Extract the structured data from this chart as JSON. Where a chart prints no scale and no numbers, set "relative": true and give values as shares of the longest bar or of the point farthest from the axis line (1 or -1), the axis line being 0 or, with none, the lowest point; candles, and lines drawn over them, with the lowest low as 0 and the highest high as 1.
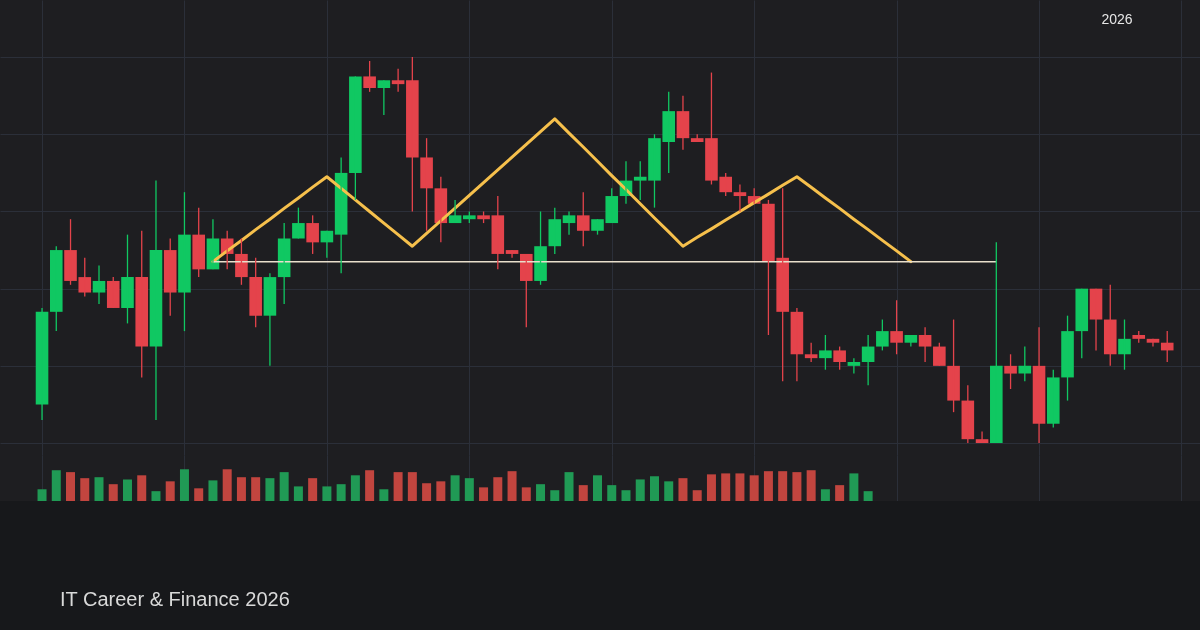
{
  "chart_data": [
    {
      "type": "candlestick",
      "relative": true,
      "grid": true,
      "annotations": [
        "2026"
      ],
      "categories": [
        null,
        null,
        null,
        null,
        null,
        null,
        null,
        null,
        null,
        null,
        null,
        null,
        null,
        null,
        null,
        null,
        null,
        null,
        null,
        null,
        null,
        null,
        null,
        null,
        null,
        null,
        null,
        null,
        null,
        null,
        null,
        null,
        null,
        null,
        null,
        null,
        null,
        null,
        null,
        null,
        null,
        null,
        null,
        null,
        null,
        null,
        null,
        null,
        null,
        null,
        null,
        null,
        null,
        null,
        null,
        null,
        null,
        null,
        null,
        null,
        null,
        null,
        null,
        null,
        null,
        null,
        null,
        null,
        null,
        null,
        null,
        null,
        null,
        null,
        null,
        null,
        null,
        null,
        null,
        null
      ],
      "ohlc": [
        [
          0.1,
          0.35,
          0.06,
          0.34
        ],
        [
          0.34,
          0.51,
          0.29,
          0.5
        ],
        [
          0.5,
          0.58,
          0.41,
          0.42
        ],
        [
          0.43,
          0.48,
          0.38,
          0.39
        ],
        [
          0.39,
          0.46,
          0.36,
          0.42
        ],
        [
          0.42,
          0.43,
          0.35,
          0.35
        ],
        [
          0.35,
          0.54,
          0.31,
          0.43
        ],
        [
          0.43,
          0.55,
          0.17,
          0.25
        ],
        [
          0.25,
          0.68,
          0.06,
          0.5
        ],
        [
          0.5,
          0.53,
          0.33,
          0.39
        ],
        [
          0.39,
          0.65,
          0.29,
          0.54
        ],
        [
          0.54,
          0.61,
          0.43,
          0.45
        ],
        [
          0.45,
          0.58,
          0.45,
          0.53
        ],
        [
          0.53,
          0.55,
          0.45,
          0.49
        ],
        [
          0.49,
          0.53,
          0.41,
          0.43
        ],
        [
          0.43,
          0.48,
          0.3,
          0.33
        ],
        [
          0.33,
          0.44,
          0.2,
          0.43
        ],
        [
          0.43,
          0.57,
          0.36,
          0.53
        ],
        [
          0.53,
          0.61,
          0.53,
          0.57
        ],
        [
          0.57,
          0.59,
          0.49,
          0.52
        ],
        [
          0.52,
          0.55,
          0.48,
          0.55
        ],
        [
          0.54,
          0.74,
          0.44,
          0.7
        ],
        [
          0.7,
          0.95,
          0.63,
          0.95
        ],
        [
          0.95,
          0.99,
          0.91,
          0.92
        ],
        [
          0.92,
          0.94,
          0.85,
          0.94
        ],
        [
          0.94,
          0.97,
          0.91,
          0.93
        ],
        [
          0.94,
          1.0,
          0.6,
          0.74
        ],
        [
          0.74,
          0.79,
          0.55,
          0.66
        ],
        [
          0.66,
          0.69,
          0.52,
          0.57
        ],
        [
          0.57,
          0.63,
          0.57,
          0.59
        ],
        [
          0.58,
          0.6,
          0.57,
          0.59
        ],
        [
          0.59,
          0.6,
          0.57,
          0.58
        ],
        [
          0.59,
          0.64,
          0.45,
          0.49
        ],
        [
          0.5,
          0.5,
          0.48,
          0.49
        ],
        [
          0.49,
          0.49,
          0.3,
          0.42
        ],
        [
          0.42,
          0.6,
          0.41,
          0.51
        ],
        [
          0.51,
          0.61,
          0.49,
          0.58
        ],
        [
          0.57,
          0.6,
          0.54,
          0.59
        ],
        [
          0.59,
          0.65,
          0.51,
          0.55
        ],
        [
          0.55,
          0.58,
          0.54,
          0.58
        ],
        [
          0.57,
          0.66,
          0.57,
          0.64
        ],
        [
          0.64,
          0.73,
          0.62,
          0.68
        ],
        [
          0.68,
          0.73,
          0.63,
          0.69
        ],
        [
          0.68,
          0.8,
          0.61,
          0.79
        ],
        [
          0.78,
          0.91,
          0.7,
          0.86
        ],
        [
          0.86,
          0.9,
          0.76,
          0.79
        ],
        [
          0.79,
          0.8,
          0.78,
          0.78
        ],
        [
          0.79,
          0.96,
          0.67,
          0.68
        ],
        [
          0.69,
          0.7,
          0.64,
          0.65
        ],
        [
          0.65,
          0.67,
          0.6,
          0.64
        ],
        [
          0.64,
          0.66,
          0.62,
          0.62
        ],
        [
          0.62,
          0.63,
          0.28,
          0.47
        ],
        [
          0.48,
          0.66,
          0.16,
          0.34
        ],
        [
          0.34,
          0.35,
          0.16,
          0.23
        ],
        [
          0.23,
          0.26,
          0.21,
          0.22
        ],
        [
          0.22,
          0.28,
          0.19,
          0.24
        ],
        [
          0.24,
          0.25,
          0.19,
          0.21
        ],
        [
          0.2,
          0.22,
          0.18,
          0.21
        ],
        [
          0.21,
          0.28,
          0.15,
          0.25
        ],
        [
          0.25,
          0.32,
          0.24,
          0.29
        ],
        [
          0.29,
          0.37,
          0.23,
          0.26
        ],
        [
          0.26,
          0.28,
          0.25,
          0.28
        ],
        [
          0.28,
          0.3,
          0.21,
          0.25
        ],
        [
          0.25,
          0.26,
          0.2,
          0.2
        ],
        [
          0.2,
          0.32,
          0.08,
          0.11
        ],
        [
          0.11,
          0.15,
          0.0,
          0.01
        ],
        [
          0.01,
          0.03,
          0.0,
          0.0
        ],
        [
          0.0,
          0.52,
          0.0,
          0.2
        ],
        [
          0.2,
          0.23,
          0.14,
          0.18
        ],
        [
          0.18,
          0.25,
          0.16,
          0.2
        ],
        [
          0.2,
          0.3,
          0.0,
          0.05
        ],
        [
          0.05,
          0.19,
          0.04,
          0.17
        ],
        [
          0.17,
          0.33,
          0.11,
          0.29
        ],
        [
          0.29,
          0.4,
          0.22,
          0.4
        ],
        [
          0.4,
          0.4,
          0.24,
          0.32
        ],
        [
          0.32,
          0.41,
          0.2,
          0.23
        ],
        [
          0.23,
          0.32,
          0.19,
          0.27
        ],
        [
          0.28,
          0.29,
          0.26,
          0.27
        ],
        [
          0.27,
          0.27,
          0.25,
          0.26
        ],
        [
          0.26,
          0.29,
          0.21,
          0.24
        ]
      ],
      "colors": [
        "#10c862",
        "#10c862",
        "#e4434b",
        "#e4434b",
        "#10c862",
        "#e4434b",
        "#10c862",
        "#e4434b",
        "#10c862",
        "#e4434b",
        "#10c862",
        "#e4434b",
        "#10c862",
        "#e4434b",
        "#e4434b",
        "#e4434b",
        "#10c862",
        "#10c862",
        "#10c862",
        "#e4434b",
        "#10c862",
        "#10c862",
        "#10c862",
        "#e4434b",
        "#10c862",
        "#e4434b",
        "#e4434b",
        "#e4434b",
        "#e4434b",
        "#10c862",
        "#10c862",
        "#e4434b",
        "#e4434b",
        "#e4434b",
        "#e4434b",
        "#10c862",
        "#10c862",
        "#10c862",
        "#e4434b",
        "#10c862",
        "#10c862",
        "#10c862",
        "#10c862",
        "#10c862",
        "#10c862",
        "#e4434b",
        "#e4434b",
        "#e4434b",
        "#e4434b",
        "#e4434b",
        "#e4434b",
        "#e4434b",
        "#e4434b",
        "#e4434b",
        "#e4434b",
        "#10c862",
        "#e4434b",
        "#10c862",
        "#10c862",
        "#10c862",
        "#e4434b",
        "#10c862",
        "#e4434b",
        "#e4434b",
        "#e4434b",
        "#e4434b",
        "#e4434b",
        "#10c862",
        "#e4434b",
        "#10c862",
        "#e4434b",
        "#10c862",
        "#10c862",
        "#10c862",
        "#e4434b",
        "#e4434b",
        "#10c862",
        "#e4434b",
        "#e4434b",
        "#e4434b"
      ],
      "series": [
        {
          "type": "line",
          "color": "#f6c04c",
          "values": [
            null,
            null,
            null,
            null,
            null,
            null,
            null,
            null,
            null,
            null,
            null,
            null,
            0.47,
            0.498,
            0.525,
            0.553,
            0.58,
            0.608,
            0.635,
            0.663,
            0.69,
            0.66,
            0.63,
            0.6,
            0.57,
            0.54,
            0.51,
            0.543,
            0.576,
            0.609,
            0.642,
            0.675,
            0.708,
            0.741,
            0.774,
            0.807,
            0.84,
            0.803,
            0.767,
            0.73,
            0.693,
            0.657,
            0.62,
            0.583,
            0.547,
            0.51,
            0.533,
            0.555,
            0.578,
            0.6,
            0.623,
            0.645,
            0.668,
            0.69,
            0.663,
            0.635,
            0.608,
            0.58,
            0.553,
            0.525,
            0.498,
            0.47,
            null,
            null,
            null,
            null,
            null,
            null,
            null,
            null,
            null,
            null,
            null,
            null,
            null,
            null,
            null,
            null,
            null,
            null
          ]
        },
        {
          "type": "line",
          "color": "#e9dfcc",
          "values": [
            null,
            null,
            null,
            null,
            null,
            null,
            null,
            null,
            null,
            null,
            null,
            null,
            0.47,
            0.47,
            0.47,
            0.47,
            0.47,
            0.47,
            0.47,
            0.47,
            0.47,
            0.47,
            0.47,
            0.47,
            0.47,
            0.47,
            0.47,
            0.47,
            0.47,
            0.47,
            0.47,
            0.47,
            0.47,
            0.47,
            0.47,
            0.47,
            0.47,
            0.47,
            0.47,
            0.47,
            0.47,
            0.47,
            0.47,
            0.47,
            0.47,
            0.47,
            0.47,
            0.47,
            0.47,
            0.47,
            0.47,
            0.47,
            0.47,
            0.47,
            0.47,
            0.47,
            0.47,
            0.47,
            0.47,
            0.47,
            0.47,
            0.47,
            0.47,
            0.47,
            0.47,
            0.47,
            0.47,
            0.47,
            null,
            null,
            null,
            null,
            null,
            null,
            null,
            null,
            null,
            null,
            null,
            null
          ]
        }
      ]
    },
    {
      "type": "bar",
      "relative": true,
      "grid": "x",
      "annotations": [
        "IT Career & Finance 2026"
      ],
      "categories": [
        null,
        null,
        null,
        null,
        null,
        null,
        null,
        null,
        null,
        null,
        null,
        null,
        null,
        null,
        null,
        null,
        null,
        null,
        null,
        null,
        null,
        null,
        null,
        null,
        null,
        null,
        null,
        null,
        null,
        null,
        null,
        null,
        null,
        null,
        null,
        null,
        null,
        null,
        null,
        null,
        null,
        null,
        null,
        null,
        null,
        null,
        null,
        null,
        null,
        null,
        null,
        null,
        null,
        null,
        null,
        null,
        null,
        null,
        null,
        null,
        null,
        null,
        null,
        null,
        null,
        null,
        null,
        null,
        null,
        null,
        null,
        null,
        null,
        null,
        null,
        null,
        null,
        null,
        null,
        null
      ],
      "values": [
        0.37,
        0.97,
        0.91,
        0.72,
        0.75,
        0.53,
        0.68,
        0.81,
        0.31,
        0.62,
        1.0,
        0.4,
        0.65,
        1.0,
        0.75,
        0.75,
        0.72,
        0.91,
        0.46,
        0.72,
        0.46,
        0.53,
        0.81,
        0.97,
        0.37,
        0.91,
        0.91,
        0.56,
        0.62,
        0.81,
        0.72,
        0.43,
        0.75,
        0.94,
        0.43,
        0.53,
        0.34,
        0.91,
        0.5,
        0.81,
        0.5,
        0.34,
        0.68,
        0.78,
        0.62,
        0.72,
        0.34,
        0.84,
        0.87,
        0.87,
        0.81,
        0.94,
        0.94,
        0.91,
        0.97,
        0.37,
        0.5,
        0.87,
        0.31,
        null,
        null,
        null,
        null,
        null,
        null,
        null,
        null,
        null,
        null,
        null,
        null,
        null,
        null,
        null,
        null,
        null,
        null,
        null,
        null,
        null
      ],
      "colors": [
        "#209a55",
        "#209a55",
        "#c2453f",
        "#c2453f",
        "#209a55",
        "#c2453f",
        "#209a55",
        "#c2453f",
        "#209a55",
        "#c2453f",
        "#209a55",
        "#c2453f",
        "#209a55",
        "#c2453f",
        "#c2453f",
        "#c2453f",
        "#209a55",
        "#209a55",
        "#209a55",
        "#c2453f",
        "#209a55",
        "#209a55",
        "#209a55",
        "#c2453f",
        "#209a55",
        "#c2453f",
        "#c2453f",
        "#c2453f",
        "#c2453f",
        "#209a55",
        "#209a55",
        "#c2453f",
        "#c2453f",
        "#c2453f",
        "#c2453f",
        "#209a55",
        "#209a55",
        "#209a55",
        "#c2453f",
        "#209a55",
        "#209a55",
        "#209a55",
        "#209a55",
        "#209a55",
        "#209a55",
        "#c2453f",
        "#c2453f",
        "#c2453f",
        "#c2453f",
        "#c2453f",
        "#c2453f",
        "#c2453f",
        "#c2453f",
        "#c2453f",
        "#c2453f",
        "#209a55",
        "#c2453f",
        "#209a55",
        "#209a55",
        null,
        null,
        null,
        null,
        null,
        null,
        null,
        null,
        null,
        null,
        null,
        null,
        null,
        null,
        null,
        null,
        null,
        null,
        null,
        null,
        null
      ]
    }
  ]
}
